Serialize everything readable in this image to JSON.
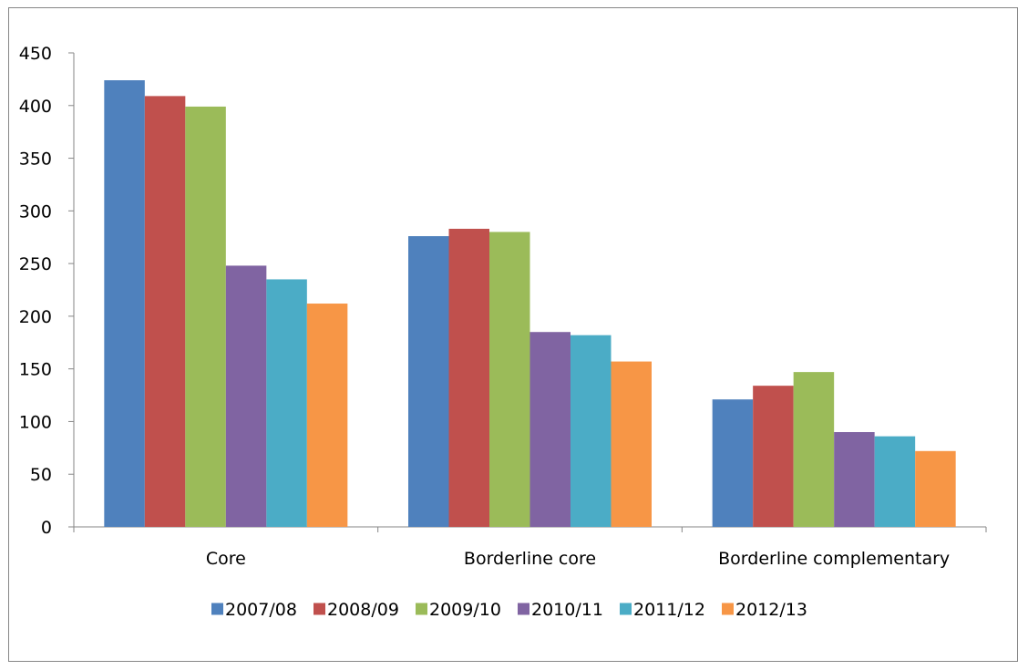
{
  "chart_data": {
    "type": "bar",
    "categories": [
      "Core",
      "Borderline core",
      "Borderline complementary"
    ],
    "series": [
      {
        "name": "2007/08",
        "color": "#4F81BD",
        "values": [
          424,
          276,
          121
        ]
      },
      {
        "name": "2008/09",
        "color": "#C0504D",
        "values": [
          409,
          283,
          134
        ]
      },
      {
        "name": "2009/10",
        "color": "#9BBB59",
        "values": [
          399,
          280,
          147
        ]
      },
      {
        "name": "2010/11",
        "color": "#8064A2",
        "values": [
          248,
          185,
          90
        ]
      },
      {
        "name": "2011/12",
        "color": "#4BACC6",
        "values": [
          235,
          182,
          86
        ]
      },
      {
        "name": "2012/13",
        "color": "#F79646",
        "values": [
          212,
          157,
          72
        ]
      }
    ],
    "y_ticks": [
      0,
      50,
      100,
      150,
      200,
      250,
      300,
      350,
      400,
      450
    ],
    "ylim": [
      0,
      450
    ],
    "grid": false,
    "legend_position": "bottom"
  }
}
